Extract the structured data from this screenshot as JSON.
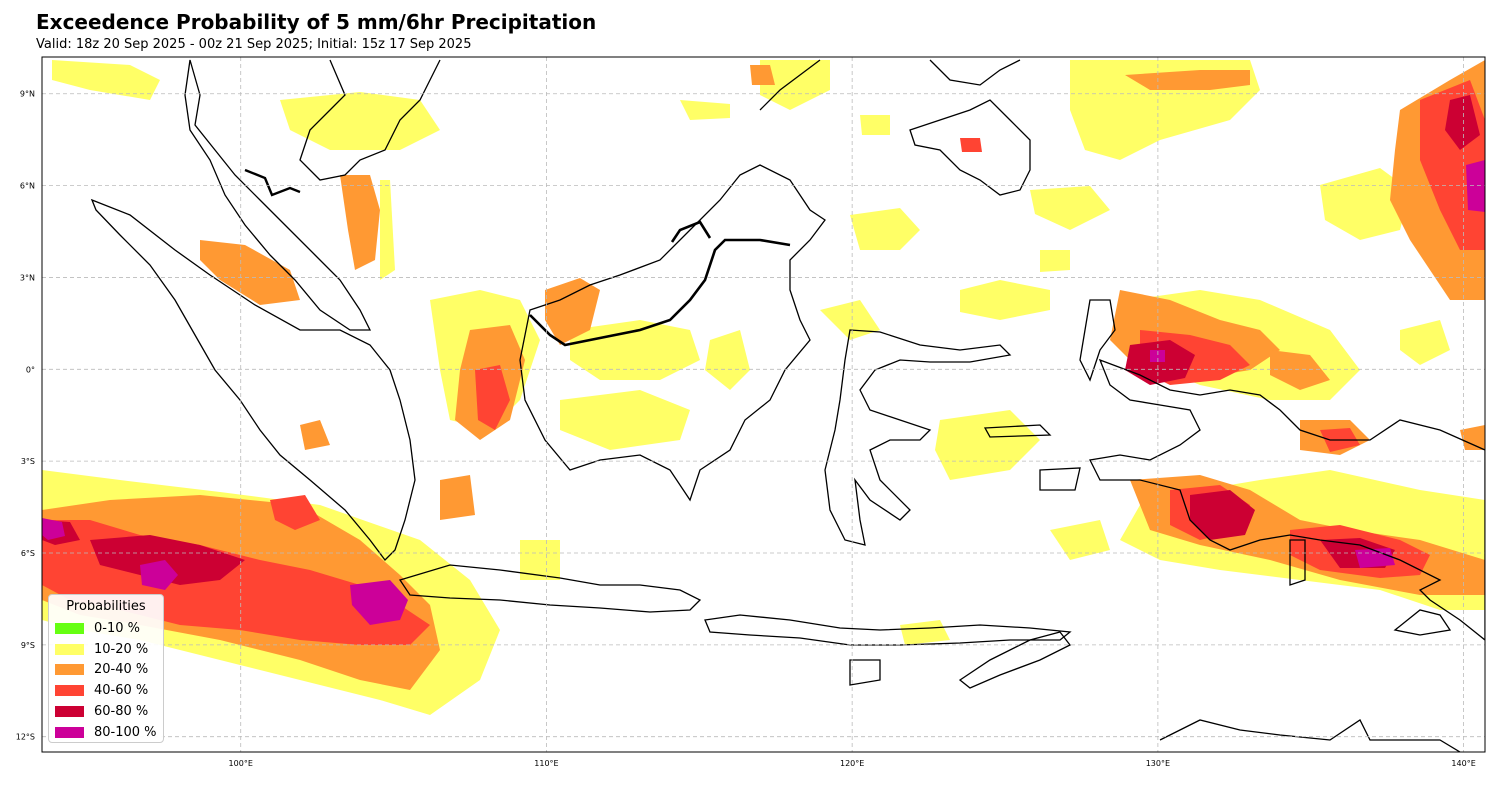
{
  "header": {
    "title": "Exceedence Probability of 5 mm/6hr Precipitation",
    "subtitle": "Valid: 18z 20 Sep 2025 - 00z 21 Sep 2025; Initial: 15z 17 Sep 2025"
  },
  "map": {
    "lon_range": [
      93.5,
      140.7
    ],
    "lat_range": [
      -12.5,
      10.2
    ],
    "lon_ticks": [
      {
        "value": 100,
        "label": "100°E"
      },
      {
        "value": 110,
        "label": "110°E"
      },
      {
        "value": 120,
        "label": "120°E"
      },
      {
        "value": 130,
        "label": "130°E"
      },
      {
        "value": 140,
        "label": "140°E"
      }
    ],
    "lat_ticks": [
      {
        "value": 9,
        "label": "9°N"
      },
      {
        "value": 6,
        "label": "6°N"
      },
      {
        "value": 3,
        "label": "3°N"
      },
      {
        "value": 0,
        "label": "0°"
      },
      {
        "value": -3,
        "label": "3°S"
      },
      {
        "value": -6,
        "label": "6°S"
      },
      {
        "value": -9,
        "label": "9°S"
      },
      {
        "value": -12,
        "label": "12°S"
      }
    ],
    "gridlines": true,
    "coastline_color": "#000000"
  },
  "legend": {
    "title": "Probabilities",
    "placement": "lower-left",
    "items": [
      {
        "label": "0-10 %",
        "color": "#66ff11"
      },
      {
        "label": "10-20 %",
        "color": "#ffff66"
      },
      {
        "label": "20-40 %",
        "color": "#ff9933"
      },
      {
        "label": "40-60 %",
        "color": "#ff4433"
      },
      {
        "label": "60-80 %",
        "color": "#cc0033"
      },
      {
        "label": "80-100 %",
        "color": "#cc0099"
      }
    ]
  }
}
